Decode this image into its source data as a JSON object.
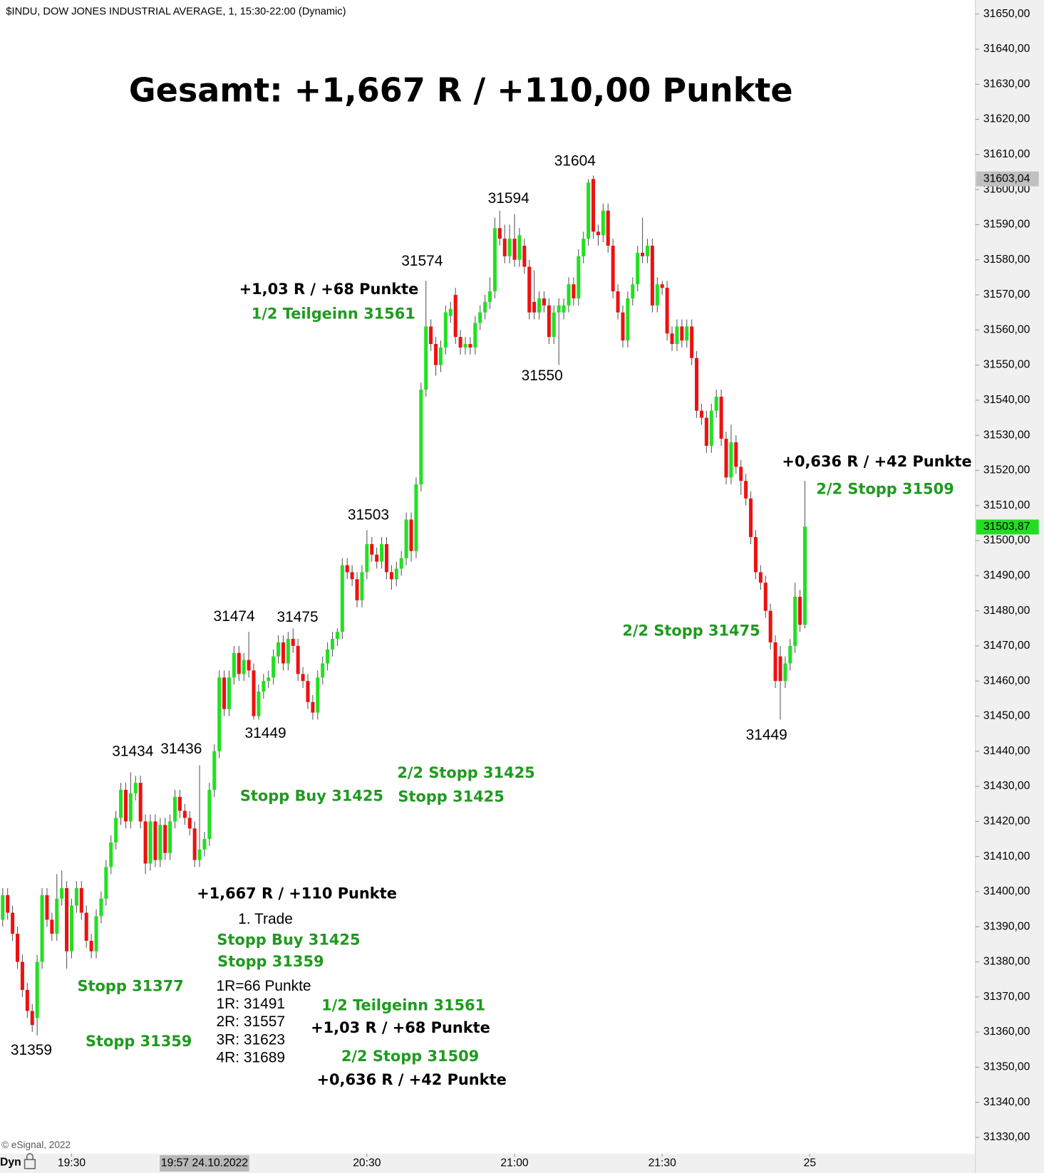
{
  "chart_data": {
    "type": "candlestick",
    "title": "Gesamt: +1,667 R / +110,00 Punkte",
    "subtitle": "$INDU, DOW JONES INDUSTRIAL AVERAGE, 1, 15:30-22:00 (Dynamic)",
    "footer": "© eSignal, 2022",
    "corner_label": "Dyn",
    "up_color": "#22e022",
    "down_color": "#ee1111",
    "x": [
      "19:16",
      "19:17",
      "19:18",
      "19:19",
      "19:20",
      "19:21",
      "19:22",
      "19:23",
      "19:24",
      "19:25",
      "19:26",
      "19:27",
      "19:28",
      "19:29",
      "19:30",
      "19:31",
      "19:32",
      "19:33",
      "19:34",
      "19:35",
      "19:36",
      "19:37",
      "19:38",
      "19:39",
      "19:40",
      "19:41",
      "19:42",
      "19:43",
      "19:44",
      "19:45",
      "19:46",
      "19:47",
      "19:48",
      "19:49",
      "19:50",
      "19:51",
      "19:52",
      "19:53",
      "19:54",
      "19:55",
      "19:56",
      "19:57",
      "19:58",
      "19:59",
      "20:00",
      "20:01",
      "20:02",
      "20:03",
      "20:04",
      "20:05",
      "20:06",
      "20:07",
      "20:08",
      "20:09",
      "20:10",
      "20:11",
      "20:12",
      "20:13",
      "20:14",
      "20:15",
      "20:16",
      "20:17",
      "20:18",
      "20:19",
      "20:20",
      "20:21",
      "20:22",
      "20:23",
      "20:24",
      "20:25",
      "20:26",
      "20:27",
      "20:28",
      "20:29",
      "20:30",
      "20:31",
      "20:32",
      "20:33",
      "20:34",
      "20:35",
      "20:36",
      "20:37",
      "20:38",
      "20:39",
      "20:40",
      "20:41",
      "20:42",
      "20:43",
      "20:44",
      "20:45",
      "20:46",
      "20:47",
      "20:48",
      "20:49",
      "20:50",
      "20:51",
      "20:52",
      "20:53",
      "20:54",
      "20:55",
      "20:56",
      "20:57",
      "20:58",
      "20:59",
      "21:00",
      "21:01",
      "21:02",
      "21:03",
      "21:04",
      "21:05",
      "21:06",
      "21:07",
      "21:08",
      "21:09",
      "21:10",
      "21:11",
      "21:12",
      "21:13",
      "21:14",
      "21:15",
      "21:16",
      "21:17",
      "21:18",
      "21:19",
      "21:20",
      "21:21",
      "21:22",
      "21:23",
      "21:24",
      "21:25",
      "21:26",
      "21:27",
      "21:28",
      "21:29",
      "21:30",
      "21:31",
      "21:32",
      "21:33",
      "21:34",
      "21:35",
      "21:36",
      "21:37",
      "21:38",
      "21:39",
      "21:40",
      "21:41",
      "21:42",
      "21:43",
      "21:44",
      "21:45",
      "21:46",
      "21:47",
      "21:48",
      "21:49",
      "21:50",
      "21:51",
      "21:52",
      "21:53",
      "21:54",
      "21:55",
      "21:56",
      "21:57",
      "21:58",
      "21:59"
    ],
    "open": [
      31392,
      31399,
      31394,
      31388,
      31380,
      31372,
      31366,
      31364,
      31380,
      31399,
      31392,
      31388,
      31398,
      31401,
      31383,
      31396,
      31401,
      31394,
      31386,
      31383,
      31393,
      31398,
      31407,
      31414,
      31421,
      31429,
      31420,
      31428,
      31431,
      31420,
      31408,
      31420,
      31409,
      31419,
      31411,
      31420,
      31427,
      31423,
      31421,
      31418,
      31409,
      31412,
      31415,
      31429,
      31440,
      31461,
      31452,
      31461,
      31468,
      31462,
      31466,
      31463,
      31450,
      31457,
      31460,
      31461,
      31467,
      31471,
      31465,
      31472,
      31470,
      31462,
      31460,
      31454,
      31451,
      31461,
      31465,
      31469,
      31472,
      31474,
      31493,
      31491,
      31489,
      31483,
      31491,
      31499,
      31496,
      31494,
      31499,
      31491,
      31489,
      31492,
      31495,
      31506,
      31497,
      31516,
      31543,
      31561,
      31556,
      31550,
      31555,
      31564,
      31570,
      31558,
      31555,
      31556,
      31555,
      31562,
      31565,
      31568,
      31571,
      31589,
      31586,
      31581,
      31586,
      31580,
      31584,
      31578,
      31568,
      31565,
      31569,
      31567,
      31558,
      31565,
      31565,
      31567,
      31573,
      31569,
      31581,
      31586,
      31603,
      31588,
      31587,
      31594,
      31584,
      31571,
      31565,
      31557,
      31569,
      31573,
      31582,
      31581,
      31584,
      31567,
      31573,
      31572,
      31559,
      31556,
      31561,
      31557,
      31561,
      31552,
      31537,
      31535,
      31527,
      31537,
      31541,
      31529,
      31518,
      31528,
      31521,
      31517,
      31512,
      31501,
      31491,
      31488,
      31480,
      31471,
      31467,
      31460,
      31465,
      31470,
      31484,
      31476
    ],
    "high": [
      31401,
      31401,
      31396,
      31390,
      31382,
      31374,
      31368,
      31382,
      31401,
      31401,
      31394,
      31405,
      31406,
      31403,
      31398,
      31403,
      31403,
      31396,
      31388,
      31395,
      31400,
      31409,
      31416,
      31423,
      31431,
      31431,
      31434,
      31433,
      31433,
      31422,
      31422,
      31422,
      31421,
      31421,
      31422,
      31429,
      31429,
      31425,
      31423,
      31420,
      31436,
      31417,
      31431,
      31442,
      31463,
      31463,
      31463,
      31470,
      31470,
      31468,
      31474,
      31465,
      31459,
      31462,
      31463,
      31469,
      31473,
      31473,
      31474,
      31475,
      31472,
      31464,
      31462,
      31456,
      31463,
      31467,
      31471,
      31474,
      31475,
      31495,
      31495,
      31493,
      31491,
      31493,
      31503,
      31501,
      31498,
      31501,
      31501,
      31493,
      31494,
      31497,
      31508,
      31508,
      31518,
      31545,
      31574,
      31563,
      31558,
      31557,
      31567,
      31568,
      31572,
      31560,
      31558,
      31558,
      31564,
      31567,
      31570,
      31575,
      31592,
      31594,
      31590,
      31590,
      31593,
      31589,
      31586,
      31580,
      31577,
      31571,
      31571,
      31569,
      31567,
      31569,
      31569,
      31575,
      31575,
      31583,
      31588,
      31603,
      31604,
      31590,
      31596,
      31596,
      31586,
      31573,
      31567,
      31571,
      31575,
      31584,
      31592,
      31586,
      31586,
      31575,
      31574,
      31574,
      31561,
      31563,
      31563,
      31563,
      31563,
      31554,
      31539,
      31537,
      31539,
      31543,
      31543,
      31531,
      31533,
      31530,
      31523,
      31519,
      31514,
      31503,
      31493,
      31490,
      31482,
      31473,
      31470,
      31467,
      31472,
      31488,
      31486,
      31517
    ],
    "low": [
      31390,
      31392,
      31386,
      31378,
      31370,
      31364,
      31360,
      31359,
      31378,
      31390,
      31386,
      31386,
      31396,
      31378,
      31381,
      31394,
      31392,
      31384,
      31381,
      31381,
      31391,
      31396,
      31405,
      31412,
      31419,
      31418,
      31418,
      31426,
      31418,
      31405,
      31406,
      31407,
      31407,
      31409,
      31409,
      31418,
      31421,
      31419,
      31416,
      31407,
      31407,
      31410,
      31413,
      31427,
      31438,
      31450,
      31450,
      31459,
      31460,
      31460,
      31461,
      31449,
      31449,
      31455,
      31458,
      31459,
      31465,
      31463,
      31463,
      31468,
      31460,
      31458,
      31452,
      31449,
      31449,
      31459,
      31463,
      31467,
      31470,
      31472,
      31489,
      31487,
      31481,
      31481,
      31489,
      31494,
      31492,
      31492,
      31489,
      31486,
      31487,
      31490,
      31493,
      31494,
      31495,
      31514,
      31541,
      31554,
      31547,
      31548,
      31553,
      31562,
      31556,
      31553,
      31553,
      31553,
      31553,
      31560,
      31563,
      31566,
      31569,
      31584,
      31579,
      31579,
      31578,
      31578,
      31576,
      31563,
      31563,
      31563,
      31565,
      31556,
      31556,
      31550,
      31563,
      31565,
      31567,
      31567,
      31579,
      31584,
      31586,
      31584,
      31585,
      31582,
      31569,
      31563,
      31555,
      31555,
      31567,
      31571,
      31579,
      31579,
      31565,
      31565,
      31570,
      31557,
      31554,
      31554,
      31555,
      31555,
      31550,
      31535,
      31533,
      31525,
      31525,
      31535,
      31527,
      31516,
      31516,
      31519,
      31513,
      31510,
      31499,
      31489,
      31486,
      31478,
      31469,
      31458,
      31449,
      31458,
      31463,
      31468,
      31474,
      31475
    ],
    "close": [
      31399,
      31394,
      31388,
      31380,
      31372,
      31366,
      31362,
      31380,
      31399,
      31392,
      31388,
      31398,
      31401,
      31383,
      31396,
      31401,
      31394,
      31386,
      31383,
      31393,
      31398,
      31407,
      31414,
      31421,
      31429,
      31420,
      31428,
      31431,
      31420,
      31408,
      31420,
      31409,
      31419,
      31411,
      31420,
      31427,
      31423,
      31421,
      31418,
      31409,
      31412,
      31415,
      31429,
      31440,
      31461,
      31452,
      31461,
      31468,
      31462,
      31466,
      31463,
      31450,
      31457,
      31460,
      31461,
      31467,
      31471,
      31465,
      31472,
      31470,
      31462,
      31460,
      31454,
      31451,
      31461,
      31465,
      31469,
      31472,
      31474,
      31493,
      31491,
      31489,
      31483,
      31491,
      31499,
      31496,
      31494,
      31499,
      31491,
      31489,
      31492,
      31495,
      31506,
      31497,
      31516,
      31543,
      31561,
      31556,
      31550,
      31555,
      31565,
      31566,
      31558,
      31555,
      31556,
      31555,
      31562,
      31565,
      31568,
      31571,
      31589,
      31586,
      31581,
      31586,
      31580,
      31587,
      31578,
      31565,
      31565,
      31569,
      31567,
      31558,
      31565,
      31567,
      31567,
      31573,
      31569,
      31581,
      31586,
      31602,
      31588,
      31587,
      31594,
      31584,
      31571,
      31565,
      31557,
      31569,
      31573,
      31582,
      31581,
      31584,
      31567,
      31573,
      31572,
      31559,
      31556,
      31561,
      31557,
      31561,
      31552,
      31537,
      31535,
      31527,
      31537,
      31541,
      31529,
      31518,
      31528,
      31521,
      31517,
      31512,
      31501,
      31491,
      31488,
      31480,
      31471,
      31460,
      31460,
      31465,
      31470,
      31484,
      31476,
      31504
    ],
    "ylim": [
      31326,
      31654
    ],
    "yticks": [
      {
        "value": 31650,
        "label": "31650,00"
      },
      {
        "value": 31640,
        "label": "31640,00"
      },
      {
        "value": 31630,
        "label": "31630,00"
      },
      {
        "value": 31620,
        "label": "31620,00"
      },
      {
        "value": 31610,
        "label": "31610,00"
      },
      {
        "value": 31600,
        "label": "31600,00"
      },
      {
        "value": 31590,
        "label": "31590,00"
      },
      {
        "value": 31580,
        "label": "31580,00"
      },
      {
        "value": 31570,
        "label": "31570,00"
      },
      {
        "value": 31560,
        "label": "31560,00"
      },
      {
        "value": 31550,
        "label": "31550,00"
      },
      {
        "value": 31540,
        "label": "31540,00"
      },
      {
        "value": 31530,
        "label": "31530,00"
      },
      {
        "value": 31520,
        "label": "31520,00"
      },
      {
        "value": 31510,
        "label": "31510,00"
      },
      {
        "value": 31500,
        "label": "31500,00"
      },
      {
        "value": 31490,
        "label": "31490,00"
      },
      {
        "value": 31480,
        "label": "31480,00"
      },
      {
        "value": 31470,
        "label": "31470,00"
      },
      {
        "value": 31460,
        "label": "31460,00"
      },
      {
        "value": 31450,
        "label": "31450,00"
      },
      {
        "value": 31440,
        "label": "31440,00"
      },
      {
        "value": 31430,
        "label": "31430,00"
      },
      {
        "value": 31420,
        "label": "31420,00"
      },
      {
        "value": 31410,
        "label": "31410,00"
      },
      {
        "value": 31400,
        "label": "31400,00"
      },
      {
        "value": 31390,
        "label": "31390,00"
      },
      {
        "value": 31380,
        "label": "31380,00"
      },
      {
        "value": 31370,
        "label": "31370,00"
      },
      {
        "value": 31360,
        "label": "31360,00"
      },
      {
        "value": 31350,
        "label": "31350,00"
      },
      {
        "value": 31340,
        "label": "31340,00"
      },
      {
        "value": 31330,
        "label": "31330,00"
      }
    ],
    "xticks": [
      "19:30",
      "20:30",
      "21:00",
      "21:30",
      {
        "value": "22:00",
        "label": "25"
      }
    ],
    "crosshair": {
      "value": "19:57",
      "label": "19:57 24.10.2022"
    },
    "price_tags": [
      {
        "value": 31603.04,
        "label": "31603,04",
        "color": "#c0c0c0"
      },
      {
        "value": 31503.87,
        "label": "31503,87",
        "color": "#22dd22"
      }
    ],
    "annotations": [
      {
        "text": "31604",
        "color": "#000000"
      },
      {
        "text": "31594",
        "color": "#000000"
      },
      {
        "text": "31574",
        "color": "#000000"
      },
      {
        "text": "31550",
        "color": "#000000"
      },
      {
        "text": "31503",
        "color": "#000000"
      },
      {
        "text": "31474",
        "color": "#000000"
      },
      {
        "text": "31475",
        "color": "#000000"
      },
      {
        "text": "31449",
        "color": "#000000"
      },
      {
        "text": "31434",
        "color": "#000000"
      },
      {
        "text": "31436",
        "color": "#000000"
      },
      {
        "text": "31359",
        "color": "#000000"
      },
      {
        "text": "31449",
        "color": "#000000"
      },
      {
        "text": "+1,03 R / +68 Punkte",
        "color": "#000000"
      },
      {
        "text": "1/2 Teilgeinn 31561",
        "color": "#1f9a1f"
      },
      {
        "text": "+0,636 R / +42 Punkte",
        "color": "#000000"
      },
      {
        "text": "2/2 Stopp 31509",
        "color": "#1f9a1f"
      },
      {
        "text": "2/2 Stopp 31475",
        "color": "#1f9a1f"
      },
      {
        "text": "2/2 Stopp 31425",
        "color": "#1f9a1f"
      },
      {
        "text": "Stopp 31425",
        "color": "#1f9a1f"
      },
      {
        "text": "Stopp Buy 31425",
        "color": "#1f9a1f"
      },
      {
        "text": "+1,667 R / +110 Punkte",
        "color": "#000000"
      },
      {
        "text": "1. Trade",
        "color": "#000000"
      },
      {
        "text": "Stopp Buy 31425",
        "color": "#1f9a1f"
      },
      {
        "text": "Stopp 31359",
        "color": "#1f9a1f"
      },
      {
        "text": "Stopp 31377",
        "color": "#1f9a1f"
      },
      {
        "text": "Stopp 31359",
        "color": "#1f9a1f"
      },
      {
        "text": "1R=66 Punkte",
        "color": "#000000"
      },
      {
        "text": "1R: 31491",
        "color": "#000000"
      },
      {
        "text": "2R: 31557",
        "color": "#000000"
      },
      {
        "text": "3R: 31623",
        "color": "#000000"
      },
      {
        "text": "4R: 31689",
        "color": "#000000"
      },
      {
        "text": "1/2 Teilgeinn 31561",
        "color": "#1f9a1f"
      },
      {
        "text": "+1,03 R / +68 Punkte",
        "color": "#000000"
      },
      {
        "text": "2/2 Stopp 31509",
        "color": "#1f9a1f"
      },
      {
        "text": "+0,636 R / +42 Punkte",
        "color": "#000000"
      }
    ]
  }
}
